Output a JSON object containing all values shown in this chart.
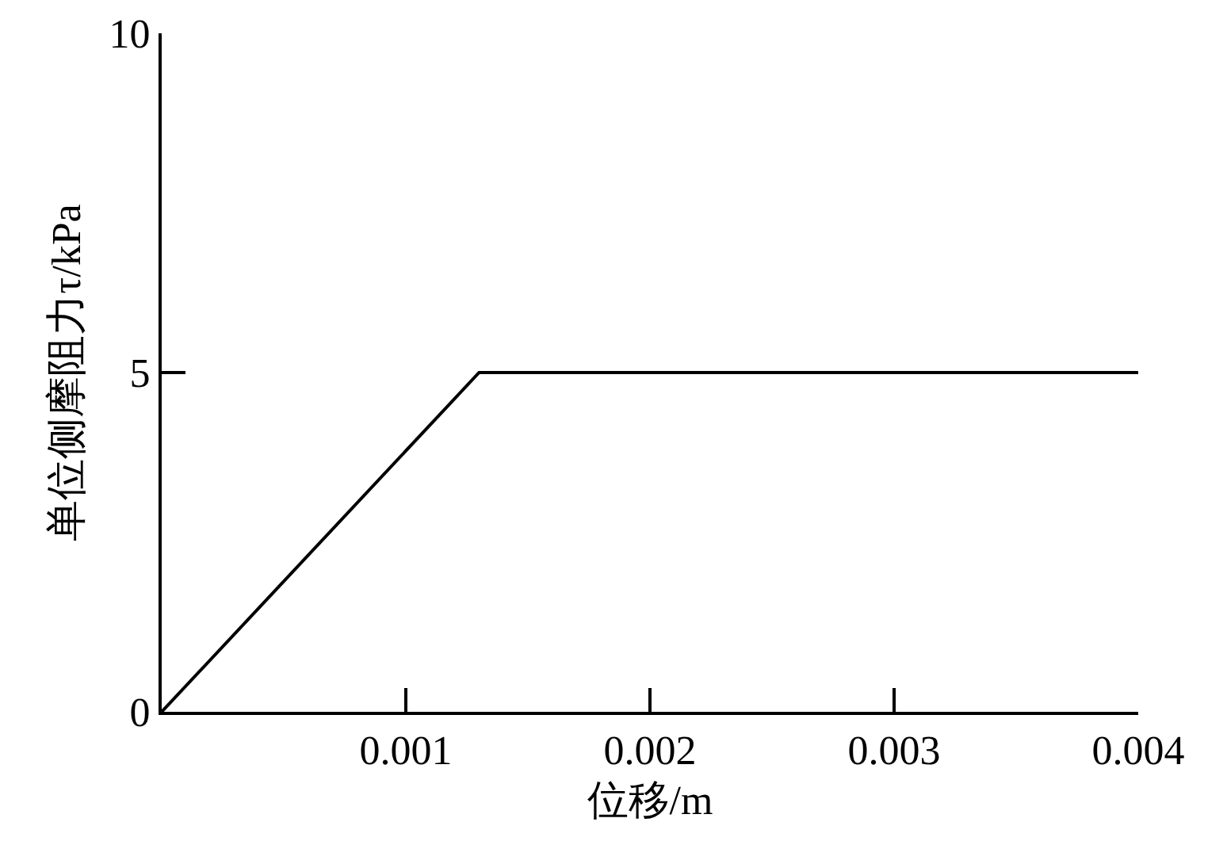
{
  "chart_data": {
    "type": "line",
    "xlabel": "位移/m",
    "ylabel": "单位侧摩阻力τ/kPa",
    "x": [
      0,
      0.0013,
      0.004
    ],
    "values": [
      0,
      5,
      5
    ],
    "color": "#000000",
    "xlim": [
      0,
      0.004
    ],
    "ylim": [
      0,
      10
    ],
    "xticks": [
      0.001,
      0.002,
      0.003,
      0.004
    ],
    "yticks": [
      0,
      5,
      10
    ],
    "grid": false,
    "marker": "none",
    "line_style": "solid"
  }
}
